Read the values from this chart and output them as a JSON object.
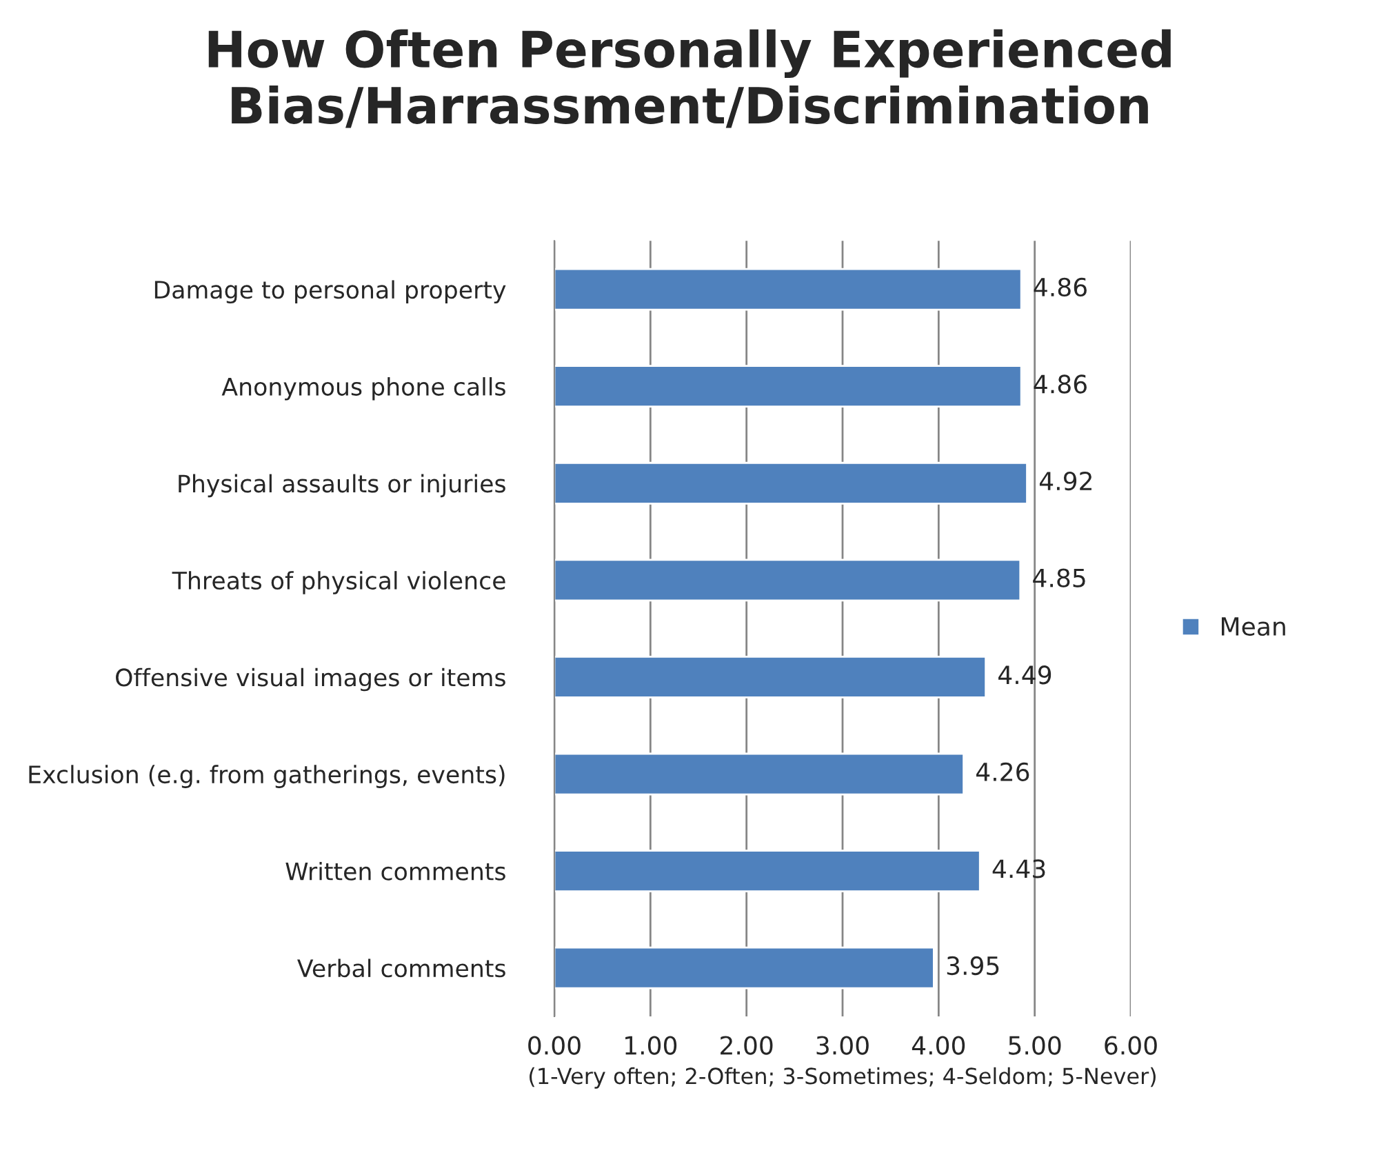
{
  "chart_data": {
    "type": "bar",
    "orientation": "horizontal",
    "title": "How Often Personally Experienced Bias/Harrassment/Discrimination",
    "xlabel": "(1-Very often; 2-Often; 3-Sometimes; 4-Seldom; 5-Never)",
    "categories": [
      "Damage to personal property",
      "Anonymous phone calls",
      "Physical assaults or injuries",
      "Threats of physical violence",
      "Offensive visual images or items",
      "Exclusion (e.g. from gatherings, events)",
      "Written comments",
      "Verbal comments"
    ],
    "series": [
      {
        "name": "Mean",
        "color": "#4f81bd",
        "values": [
          4.86,
          4.86,
          4.92,
          4.85,
          4.49,
          4.26,
          4.43,
          3.95
        ]
      }
    ],
    "data_labels": true,
    "xlim": [
      0,
      6
    ],
    "xticks": [
      {
        "value": 0,
        "label": "0.00"
      },
      {
        "value": 1,
        "label": "1.00"
      },
      {
        "value": 2,
        "label": "2.00"
      },
      {
        "value": 3,
        "label": "3.00"
      },
      {
        "value": 4,
        "label": "4.00"
      },
      {
        "value": 5,
        "label": "5.00"
      },
      {
        "value": 6,
        "label": "6.00"
      }
    ],
    "grid": "x",
    "legend": "right"
  }
}
